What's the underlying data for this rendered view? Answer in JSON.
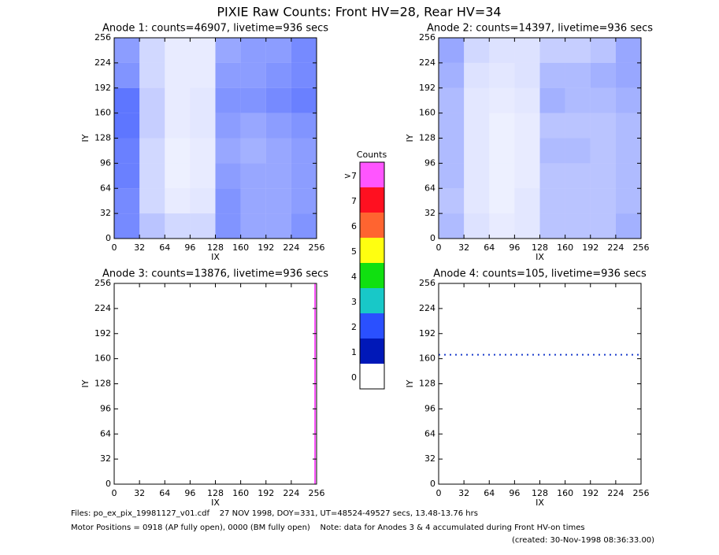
{
  "title": "PIXIE Raw Counts:  Front HV=28, Rear HV=34",
  "chart_data": [
    {
      "type": "heatmap",
      "title": "Anode 1: counts=46907, livetime=936 secs",
      "xlabel": "IX",
      "ylabel": "IY",
      "xlim": [
        0,
        256
      ],
      "ylim": [
        0,
        256
      ],
      "xticks": [
        0,
        32,
        64,
        96,
        128,
        160,
        192,
        224,
        256
      ],
      "yticks": [
        0,
        32,
        64,
        96,
        128,
        160,
        192,
        224,
        256
      ],
      "color": "#1a3cff",
      "density": [
        [
          0.5,
          0.2,
          0.1,
          0.1,
          0.45,
          0.5,
          0.5,
          0.6
        ],
        [
          0.55,
          0.2,
          0.1,
          0.1,
          0.5,
          0.5,
          0.55,
          0.6
        ],
        [
          0.7,
          0.25,
          0.1,
          0.12,
          0.55,
          0.55,
          0.6,
          0.65
        ],
        [
          0.7,
          0.25,
          0.1,
          0.12,
          0.5,
          0.45,
          0.5,
          0.55
        ],
        [
          0.65,
          0.2,
          0.08,
          0.1,
          0.45,
          0.4,
          0.45,
          0.5
        ],
        [
          0.65,
          0.2,
          0.08,
          0.1,
          0.5,
          0.45,
          0.45,
          0.5
        ],
        [
          0.6,
          0.2,
          0.1,
          0.12,
          0.55,
          0.45,
          0.45,
          0.5
        ],
        [
          0.6,
          0.3,
          0.2,
          0.2,
          0.55,
          0.45,
          0.45,
          0.55
        ]
      ]
    },
    {
      "type": "heatmap",
      "title": "Anode 2: counts=14397, livetime=936 secs",
      "xlabel": "IX",
      "ylabel": "IY",
      "xlim": [
        0,
        256
      ],
      "ylim": [
        0,
        256
      ],
      "xticks": [
        0,
        32,
        64,
        96,
        128,
        160,
        192,
        224,
        256
      ],
      "yticks": [
        0,
        32,
        64,
        96,
        128,
        160,
        192,
        224,
        256
      ],
      "color": "#1a3cff",
      "density": [
        [
          0.45,
          0.2,
          0.15,
          0.15,
          0.25,
          0.25,
          0.3,
          0.45
        ],
        [
          0.4,
          0.15,
          0.12,
          0.15,
          0.35,
          0.35,
          0.4,
          0.45
        ],
        [
          0.35,
          0.12,
          0.1,
          0.12,
          0.4,
          0.35,
          0.35,
          0.4
        ],
        [
          0.35,
          0.12,
          0.08,
          0.1,
          0.3,
          0.3,
          0.3,
          0.35
        ],
        [
          0.35,
          0.12,
          0.08,
          0.1,
          0.35,
          0.35,
          0.3,
          0.35
        ],
        [
          0.35,
          0.12,
          0.08,
          0.1,
          0.3,
          0.3,
          0.3,
          0.35
        ],
        [
          0.3,
          0.12,
          0.08,
          0.12,
          0.3,
          0.3,
          0.3,
          0.35
        ],
        [
          0.35,
          0.15,
          0.1,
          0.12,
          0.3,
          0.3,
          0.3,
          0.4
        ]
      ]
    },
    {
      "type": "heatmap",
      "title": "Anode 3: counts=13876, livetime=936 secs",
      "xlabel": "IX",
      "ylabel": "IY",
      "xlim": [
        0,
        256
      ],
      "ylim": [
        0,
        256
      ],
      "xticks": [
        0,
        32,
        64,
        96,
        128,
        160,
        192,
        224,
        256
      ],
      "yticks": [
        0,
        32,
        64,
        96,
        128,
        160,
        192,
        224,
        256
      ],
      "lines": [
        {
          "x": [
            254,
            254
          ],
          "y": [
            0,
            256
          ],
          "color": "#ff55ff"
        }
      ]
    },
    {
      "type": "heatmap",
      "title": "Anode 4: counts=105, livetime=936 secs",
      "xlabel": "IX",
      "ylabel": "IY",
      "xlim": [
        0,
        256
      ],
      "ylim": [
        0,
        256
      ],
      "xticks": [
        0,
        32,
        64,
        96,
        128,
        160,
        192,
        224,
        256
      ],
      "yticks": [
        0,
        32,
        64,
        96,
        128,
        160,
        192,
        224,
        256
      ],
      "lines": [
        {
          "x": [
            0,
            256
          ],
          "y": [
            165,
            165
          ],
          "color": "#1a3ccc"
        }
      ]
    }
  ],
  "colorbar": {
    "title": "Counts",
    "labels": [
      "0",
      "1",
      "2",
      "3",
      "4",
      "5",
      "6",
      "7",
      ">7"
    ],
    "colors": [
      "#ffffff",
      "#0018b8",
      "#2a50ff",
      "#18c8c8",
      "#10e010",
      "#ffff10",
      "#ff6430",
      "#ff1020",
      "#ff55ff"
    ]
  },
  "footer": [
    "Files: po_ex_pix_19981127_v01.cdf    27 NOV 1998, DOY=331, UT=48524-49527 secs, 13.48-13.76 hrs",
    "Motor Positions = 0918 (AP fully open), 0000 (BM fully open)    Note: data for Anodes 3 & 4 accumulated during Front HV-on times",
    "(created: 30-Nov-1998 08:36:33.00)"
  ]
}
